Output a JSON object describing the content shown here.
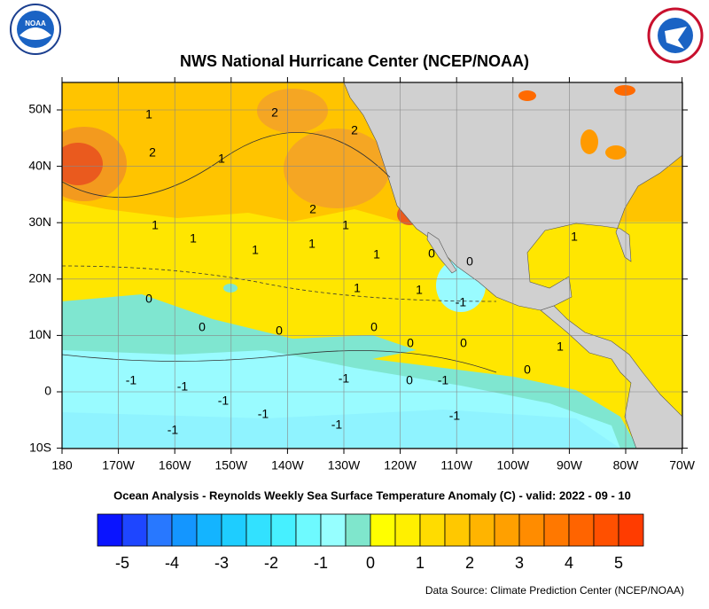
{
  "header": {
    "title": "NWS National Hurricane Center (NCEP/NOAA)",
    "noaa_logo": "NOAA"
  },
  "map": {
    "lat_labels": [
      "50N",
      "40N",
      "30N",
      "20N",
      "10N",
      "0",
      "10S"
    ],
    "lon_labels": [
      "180",
      "170W",
      "160W",
      "150W",
      "140W",
      "130W",
      "120W",
      "110W",
      "100W",
      "90W",
      "80W",
      "70W"
    ],
    "contour_labels": [
      "1",
      "2",
      "2",
      "2",
      "1",
      "2",
      "1",
      "1",
      "1",
      "1",
      "1",
      "1",
      "0",
      "0",
      "1",
      "1",
      "0",
      "0",
      "0",
      "0",
      "0",
      "0",
      "-1",
      "0",
      "1",
      "-1",
      "-1",
      "-1",
      "0",
      "-1",
      "-1",
      "-1",
      "-1",
      "-1",
      "-1",
      "1"
    ]
  },
  "caption": "Ocean Analysis - Reynolds Weekly Sea Surface Temperature Anomaly (C) - valid: 2022 - 09 - 10",
  "legend": {
    "labels": [
      -5,
      -4,
      -3,
      -2,
      -1,
      0,
      1,
      2,
      3,
      4,
      5
    ],
    "colors": [
      "#0a14ff",
      "#1e46ff",
      "#2878ff",
      "#1496ff",
      "#14b4ff",
      "#1ecdff",
      "#32e1ff",
      "#46f0ff",
      "#6efaff",
      "#96ffff",
      "#7fe6cc",
      "#ffff00",
      "#fff000",
      "#ffdc00",
      "#ffc800",
      "#ffb400",
      "#ffa000",
      "#ff8c00",
      "#ff7800",
      "#ff6400",
      "#ff5000",
      "#ff3c00"
    ]
  },
  "footer": {
    "source": "Data Source: Climate Prediction Center (NCEP/NOAA)"
  }
}
